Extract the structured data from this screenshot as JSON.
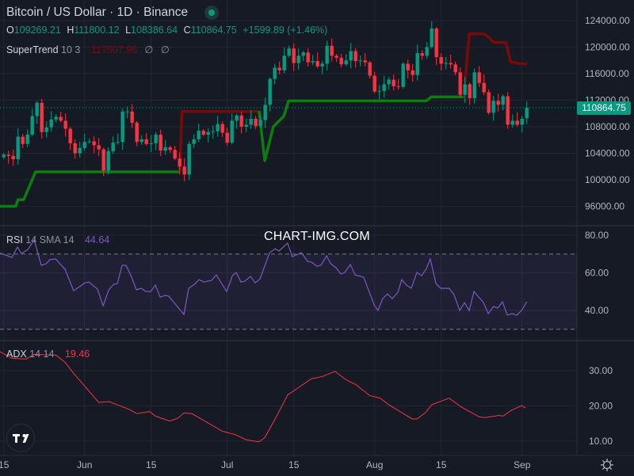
{
  "header": {
    "title": "Bitcoin / US Dollar · 1D · Binance",
    "ohlc": {
      "o_label": "O",
      "o": "109269.21",
      "h_label": "H",
      "h": "111800.12",
      "l_label": "L",
      "l": "108386.64",
      "c_label": "C",
      "c": "110864.75",
      "change": "+1.59989 e3",
      "change_text": "+1599.89 (+1.46%)"
    },
    "supertrend": {
      "name": "SuperTrend",
      "params": "10 3",
      "value": "117507.96",
      "empty1": "∅",
      "empty2": "∅"
    },
    "rsi": {
      "name": "RSI",
      "params": "14 SMA 14",
      "value": "44.64"
    },
    "adx": {
      "name": "ADX",
      "params": "14 14",
      "value": "19.46"
    }
  },
  "watermark": "CHART-IMG.COM",
  "last_price_tag": "110864.75",
  "colors": {
    "up": "#089981",
    "down": "#F23645",
    "supertrend_up": "#0B7F0B",
    "supertrend_down": "#7A0A0A",
    "rsi": "#7E57C2",
    "adx": "#F23645",
    "bg": "#161A25",
    "grid": "#232632"
  },
  "chart_data": [
    {
      "type": "candlestick",
      "title": "Bitcoin / US Dollar · 1D · Binance",
      "x_ticks": [
        {
          "day": 0,
          "label": "15"
        },
        {
          "day": 17,
          "label": "Jun"
        },
        {
          "day": 31,
          "label": "15"
        },
        {
          "day": 47,
          "label": "Jul"
        },
        {
          "day": 61,
          "label": "15"
        },
        {
          "day": 78,
          "label": "Aug"
        },
        {
          "day": 92,
          "label": "15"
        },
        {
          "day": 109,
          "label": "Sep"
        }
      ],
      "y_ticks": [
        "124000.00",
        "120000.00",
        "116000.00",
        "112000.00",
        "108000.00",
        "104000.00",
        "100000.00",
        "96000.00"
      ],
      "ylim": [
        93500,
        125500
      ],
      "first_open": 103400,
      "last_candle": {
        "open": 109269.21,
        "high": 111800.12,
        "low": 108386.64,
        "close": 110864.75
      },
      "closes": [
        103800,
        103600,
        103100,
        106500,
        105400,
        106800,
        109600,
        111600,
        107200,
        107900,
        109100,
        109500,
        108900,
        107700,
        105500,
        104000,
        104800,
        105700,
        105800,
        105200,
        104600,
        101400,
        104300,
        105600,
        105700,
        110300,
        110300,
        108600,
        105700,
        106100,
        105400,
        105500,
        106800,
        104400,
        104900,
        104500,
        103200,
        102000,
        100800,
        105400,
        106100,
        107400,
        106800,
        107200,
        107300,
        108400,
        107100,
        105600,
        108900,
        109700,
        108000,
        108300,
        109200,
        108100,
        109000,
        111300,
        115200,
        116900,
        116500,
        118700,
        119800,
        117600,
        118700,
        119200,
        117700,
        117900,
        117100,
        117500,
        120200,
        118700,
        118400,
        117400,
        118000,
        119400,
        117900,
        118000,
        117700,
        115700,
        113300,
        113400,
        114400,
        115100,
        114100,
        114000,
        117500,
        116500,
        115800,
        119100,
        118700,
        120000,
        122800,
        118500,
        117500,
        117600,
        117400,
        116200,
        112800,
        114400,
        112300,
        116200,
        114600,
        113200,
        110100,
        111900,
        111300,
        112600,
        108300,
        108900,
        108300,
        109200,
        110864.75
      ],
      "supertrend": [
        {
          "trend": "up",
          "points": [
            [
              -0.8,
              96000
            ],
            [
              2.5,
              96000
            ],
            [
              3,
              97000
            ],
            [
              4.2,
              97000
            ],
            [
              6.7,
              101200
            ],
            [
              37,
              101200
            ]
          ]
        },
        {
          "trend": "down",
          "points": [
            [
              37,
              101200
            ],
            [
              37.5,
              110300
            ],
            [
              53.7,
              110300
            ]
          ]
        },
        {
          "trend": "up",
          "points": [
            [
              53.7,
              110400
            ],
            [
              54.9,
              102900
            ],
            [
              56.7,
              108000
            ],
            [
              58.9,
              109600
            ],
            [
              59.9,
              111900
            ],
            [
              88.9,
              111900
            ],
            [
              89.9,
              112500
            ],
            [
              96.7,
              112500
            ]
          ]
        },
        {
          "trend": "down",
          "points": [
            [
              97,
              114600
            ],
            [
              97.9,
              122000
            ],
            [
              100.9,
              122000
            ],
            [
              102,
              121500
            ],
            [
              103,
              120700
            ],
            [
              105.6,
              120700
            ],
            [
              106.6,
              117800
            ],
            [
              108.6,
              117500
            ],
            [
              110,
              117500
            ]
          ]
        }
      ]
    },
    {
      "type": "line",
      "title": "RSI 14 SMA 14",
      "y_ticks": [
        "80.00",
        "60.00",
        "40.00"
      ],
      "bands": [
        70,
        30
      ],
      "ylim": [
        20,
        83
      ],
      "points": [
        [
          -0.8,
          70.6
        ],
        [
          1.7,
          68.2
        ],
        [
          2.9,
          73.7
        ],
        [
          3.7,
          70.3
        ],
        [
          5.1,
          72.4
        ],
        [
          6.4,
          77.5
        ],
        [
          7.9,
          64
        ],
        [
          8.9,
          64.8
        ],
        [
          9.7,
          67
        ],
        [
          10.9,
          67.4
        ],
        [
          12.9,
          61.9
        ],
        [
          14.7,
          50.5
        ],
        [
          17.1,
          54.7
        ],
        [
          17.9,
          55.1
        ],
        [
          19.7,
          51.4
        ],
        [
          20.9,
          42.5
        ],
        [
          22.1,
          51
        ],
        [
          23.1,
          53.9
        ],
        [
          23.9,
          54.3
        ],
        [
          24.9,
          64
        ],
        [
          25.7,
          64
        ],
        [
          26.7,
          58.9
        ],
        [
          27.9,
          51
        ],
        [
          28.9,
          51.8
        ],
        [
          29.9,
          50.1
        ],
        [
          30.9,
          50.1
        ],
        [
          31.9,
          53.5
        ],
        [
          32.9,
          47.1
        ],
        [
          33.9,
          48
        ],
        [
          34.7,
          47.6
        ],
        [
          37.9,
          37.9
        ],
        [
          38.9,
          51.8
        ],
        [
          40.1,
          53.9
        ],
        [
          41.1,
          56.4
        ],
        [
          42.1,
          55.1
        ],
        [
          43.7,
          56
        ],
        [
          44.7,
          58.9
        ],
        [
          46.9,
          50.1
        ],
        [
          48.1,
          58.5
        ],
        [
          48.9,
          60.2
        ],
        [
          49.9,
          55.1
        ],
        [
          50.7,
          55.6
        ],
        [
          51.9,
          58.1
        ],
        [
          52.9,
          54.7
        ],
        [
          53.9,
          56.8
        ],
        [
          55.9,
          70.7
        ],
        [
          57.1,
          72.8
        ],
        [
          57.9,
          71.6
        ],
        [
          59.7,
          75.8
        ],
        [
          60.7,
          68.6
        ],
        [
          62.6,
          70.7
        ],
        [
          63.9,
          66.1
        ],
        [
          64.7,
          65.7
        ],
        [
          65.9,
          63.6
        ],
        [
          66.7,
          64
        ],
        [
          67.9,
          69
        ],
        [
          68.8,
          64.8
        ],
        [
          69.9,
          62.7
        ],
        [
          70.9,
          59.4
        ],
        [
          71.7,
          60.2
        ],
        [
          72.9,
          64.4
        ],
        [
          73.9,
          58.9
        ],
        [
          75.7,
          57.7
        ],
        [
          77.9,
          43
        ],
        [
          78.7,
          40
        ],
        [
          79.7,
          46.3
        ],
        [
          80.7,
          48.8
        ],
        [
          81.7,
          46.3
        ],
        [
          82.9,
          49.7
        ],
        [
          83.7,
          56.4
        ],
        [
          84.7,
          53.5
        ],
        [
          85.7,
          51.8
        ],
        [
          86.9,
          60.2
        ],
        [
          87.9,
          58.5
        ],
        [
          88.9,
          62.3
        ],
        [
          89.7,
          67.4
        ],
        [
          90.9,
          54.3
        ],
        [
          91.9,
          51.8
        ],
        [
          93.7,
          51.8
        ],
        [
          94.7,
          48.4
        ],
        [
          95.9,
          40
        ],
        [
          96.9,
          44.2
        ],
        [
          97.9,
          40
        ],
        [
          98.9,
          50.1
        ],
        [
          99.9,
          47.1
        ],
        [
          100.9,
          44.2
        ],
        [
          101.9,
          38.3
        ],
        [
          103,
          42.1
        ],
        [
          103.9,
          41.3
        ],
        [
          104.9,
          44.6
        ],
        [
          105.9,
          37.5
        ],
        [
          106.9,
          38.3
        ],
        [
          107.9,
          37.5
        ],
        [
          108.9,
          40
        ],
        [
          110,
          44.64
        ]
      ]
    },
    {
      "type": "line",
      "title": "ADX 14 14",
      "y_ticks": [
        "30.00",
        "20.00",
        "10.00"
      ],
      "ylim": [
        5,
        38
      ],
      "points": [
        [
          -0.8,
          35.4
        ],
        [
          1.7,
          33.5
        ],
        [
          4.7,
          33.3
        ],
        [
          6.4,
          34.6
        ],
        [
          11,
          34.4
        ],
        [
          12.9,
          32.4
        ],
        [
          14.6,
          29.4
        ],
        [
          20,
          21
        ],
        [
          22.2,
          21.2
        ],
        [
          26.4,
          19
        ],
        [
          28,
          17.8
        ],
        [
          30.7,
          18.4
        ],
        [
          31.9,
          17.1
        ],
        [
          34.9,
          15.7
        ],
        [
          36.6,
          16.5
        ],
        [
          37.9,
          18
        ],
        [
          39.6,
          17.8
        ],
        [
          46,
          12.8
        ],
        [
          48.6,
          11.9
        ],
        [
          51,
          10.4
        ],
        [
          53.7,
          9.8
        ],
        [
          54.9,
          11
        ],
        [
          57.4,
          17.1
        ],
        [
          59.7,
          23.1
        ],
        [
          64.7,
          27.7
        ],
        [
          66.9,
          28.3
        ],
        [
          69.7,
          29.8
        ],
        [
          71.9,
          27.5
        ],
        [
          74.1,
          26
        ],
        [
          77,
          22.9
        ],
        [
          79.2,
          22.2
        ],
        [
          80.9,
          20.4
        ],
        [
          85.9,
          16.3
        ],
        [
          86.9,
          16.3
        ],
        [
          88.6,
          18
        ],
        [
          90.1,
          20.4
        ],
        [
          91.9,
          21.3
        ],
        [
          93.7,
          22.2
        ],
        [
          96.2,
          19.7
        ],
        [
          100,
          16.9
        ],
        [
          101.2,
          16.7
        ],
        [
          104.2,
          17.3
        ],
        [
          105,
          17.1
        ],
        [
          106.7,
          18.7
        ],
        [
          108.9,
          20.1
        ],
        [
          109.7,
          19.46
        ]
      ]
    }
  ]
}
